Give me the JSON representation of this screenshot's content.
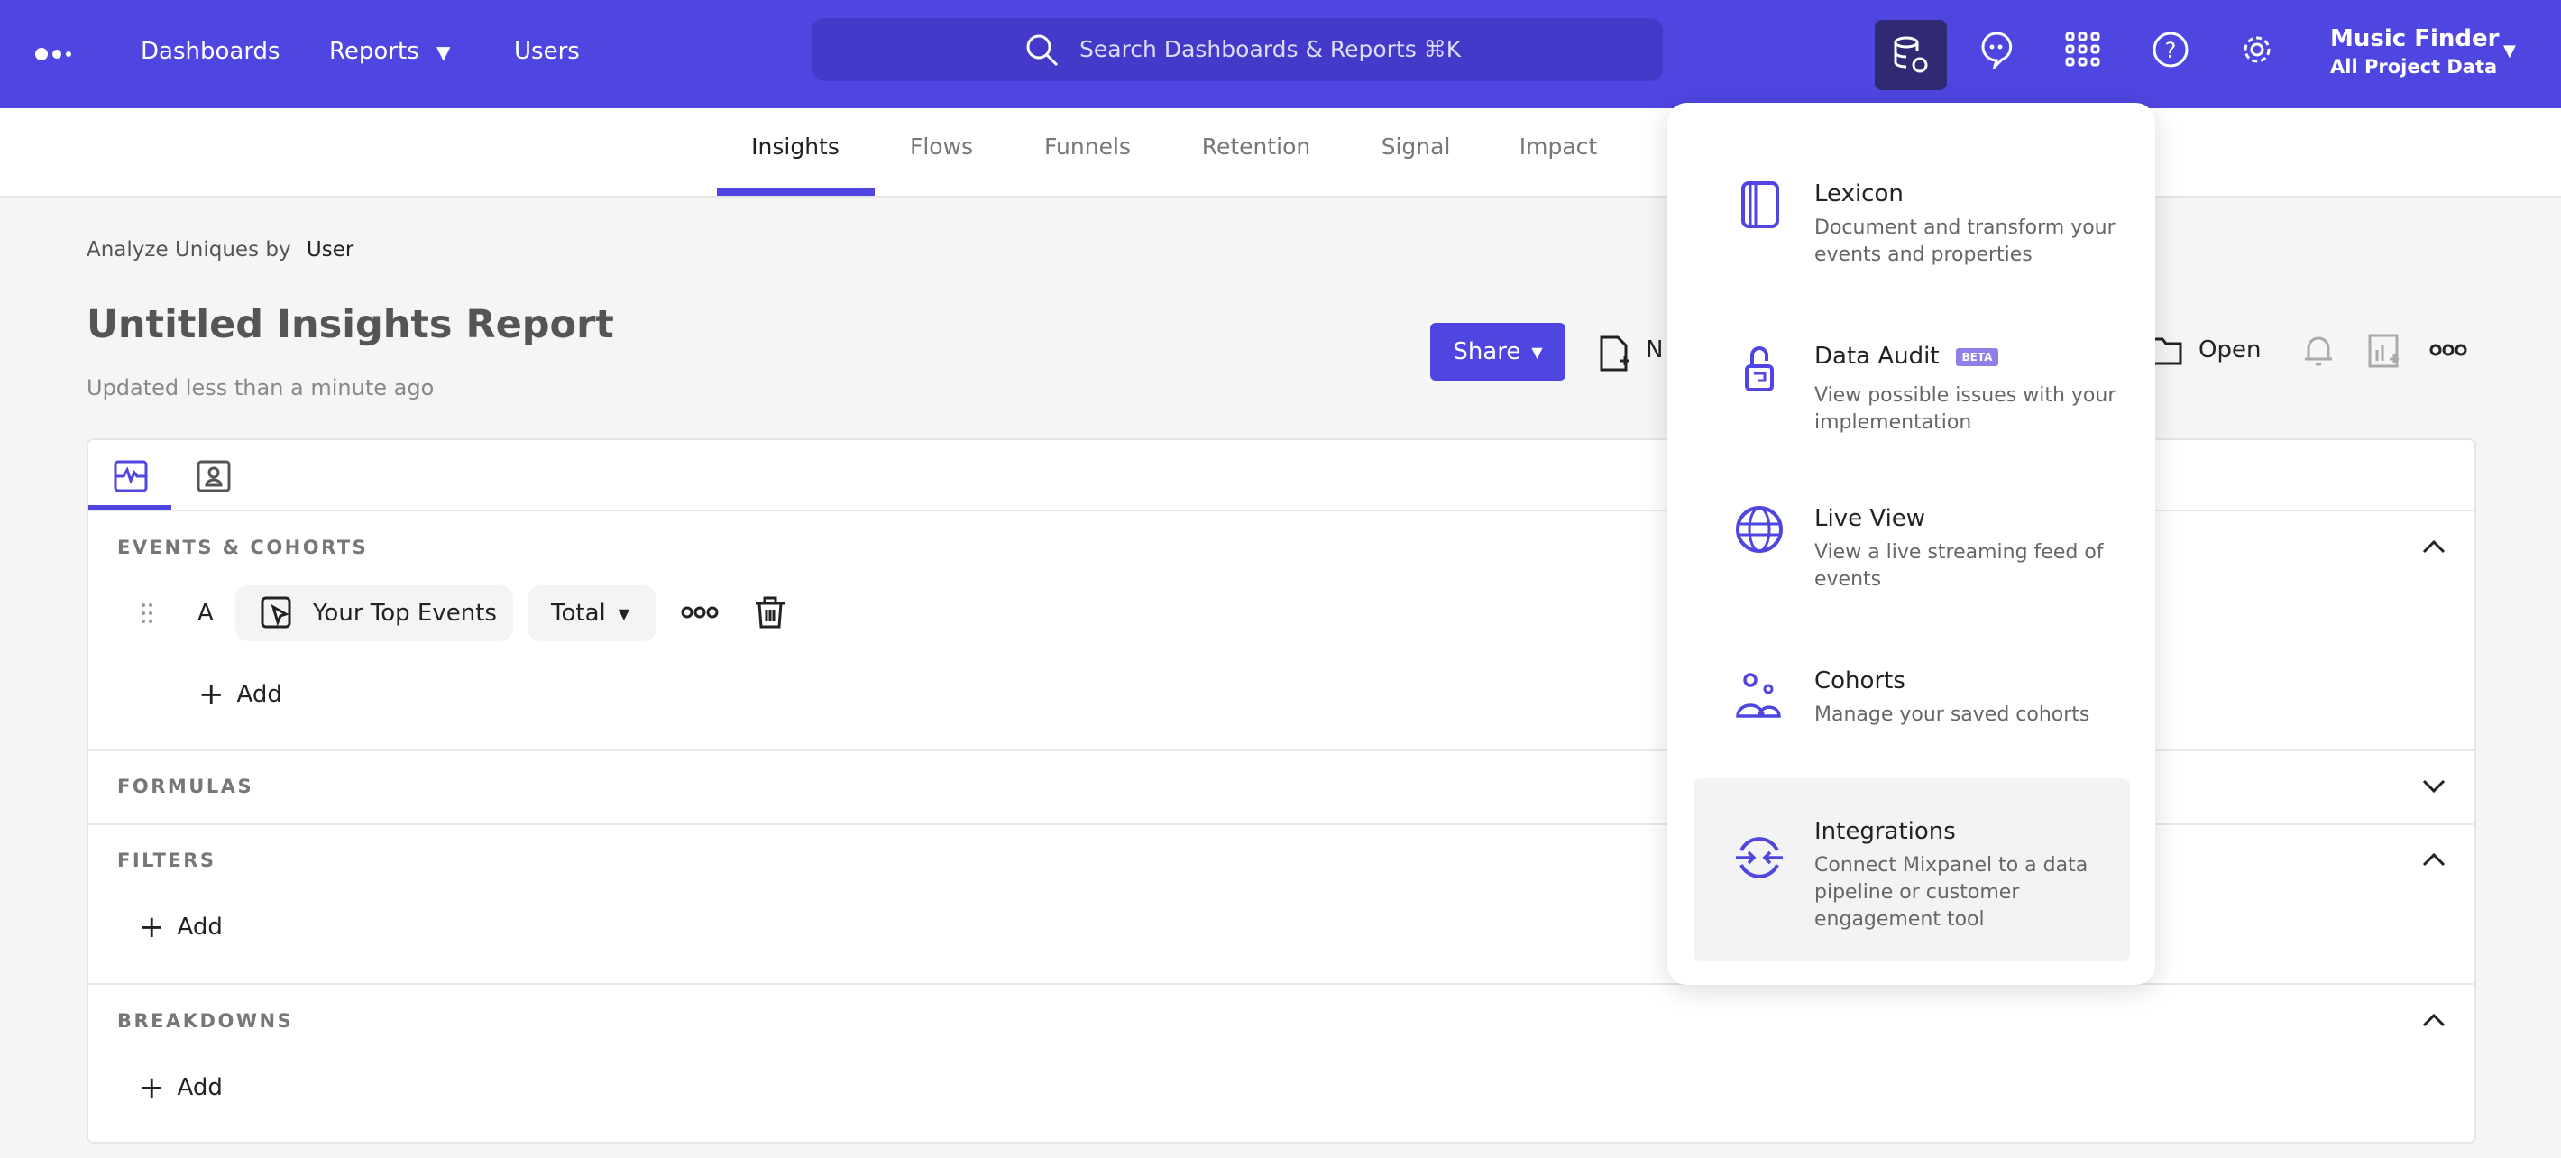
{
  "topbar": {
    "nav": {
      "dashboards": "Dashboards",
      "reports": "Reports",
      "users": "Users"
    },
    "search_placeholder": "Search Dashboards & Reports ⌘K",
    "project_name": "Music Finder",
    "project_scope": "All Project Data",
    "icons": [
      "data-management-icon",
      "chat-icon",
      "apps-grid-icon",
      "help-icon",
      "settings-icon"
    ],
    "brand_color": "#4f46e1"
  },
  "subnav": {
    "tabs": [
      "Insights",
      "Flows",
      "Funnels",
      "Retention",
      "Signal",
      "Impact"
    ],
    "active": "Insights"
  },
  "report": {
    "analyze_label": "Analyze Uniques by",
    "analyze_value": "User",
    "title": "Untitled Insights Report",
    "updated": "Updated less than a minute ago",
    "share": "Share",
    "new": "N",
    "open": "Open"
  },
  "panel": {
    "sections": {
      "events": "EVENTS & COHORTS",
      "formulas": "FORMULAS",
      "filters": "FILTERS",
      "breakdowns": "BREAKDOWNS"
    },
    "event_row": {
      "letter": "A",
      "event": "Your Top Events",
      "measure": "Total"
    },
    "add": "Add"
  },
  "dropdown": {
    "items": [
      {
        "title": "Lexicon",
        "desc": "Document and transform your events and properties"
      },
      {
        "title": "Data Audit",
        "badge": "BETA",
        "desc": "View possible issues with your implementation"
      },
      {
        "title": "Live View",
        "desc": "View a live streaming feed of events"
      },
      {
        "title": "Cohorts",
        "desc": "Manage your saved cohorts"
      },
      {
        "title": "Integrations",
        "desc": "Connect Mixpanel to a data pipeline or customer engagement tool"
      }
    ]
  }
}
